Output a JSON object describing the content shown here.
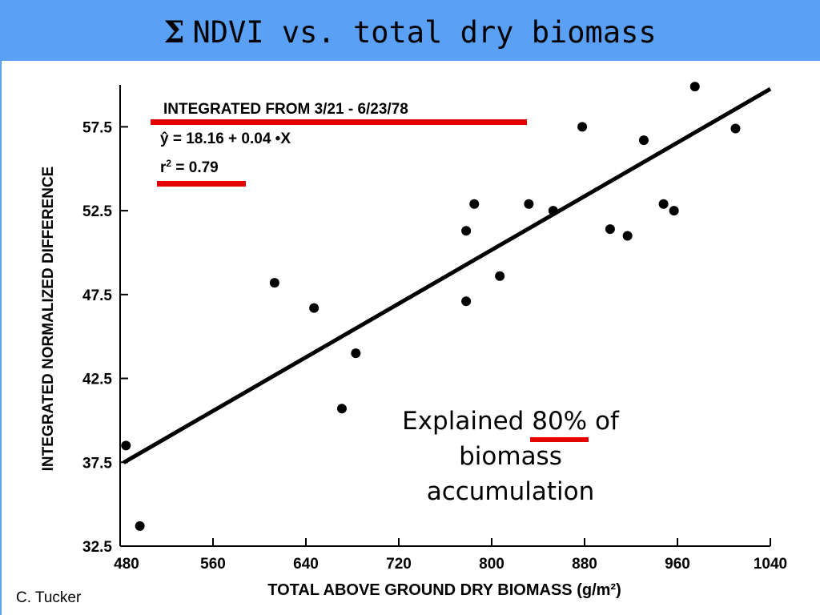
{
  "slide": {
    "title_symbol": "Σ",
    "title": "NDVI vs. total dry biomass",
    "credit": "C. Tucker",
    "callout_before": "Explained",
    "callout_percent": "80%",
    "callout_after": "of",
    "callout_line2": "biomass",
    "callout_line3": "accumulation",
    "title_bar_color": "#5aa0f5",
    "highlight_color": "#e50000"
  },
  "chart_data": {
    "type": "scatter",
    "xlabel": "TOTAL ABOVE GROUND DRY BIOMASS (g/m²)",
    "ylabel": "INTEGRATED NORMALIZED DIFFERENCE",
    "xlim": [
      480,
      1040
    ],
    "ylim": [
      32.5,
      60
    ],
    "xticks": [
      480,
      560,
      640,
      720,
      800,
      880,
      960,
      1040
    ],
    "xtick_labels": [
      "480",
      "560",
      "640",
      "720",
      "800",
      "880",
      "960",
      "1040"
    ],
    "yticks": [
      32.5,
      37.5,
      42.5,
      47.5,
      52.5,
      57.5
    ],
    "ytick_labels": [
      "32.5",
      "37.5",
      "42.5",
      "47.5",
      "52.5",
      "57.5"
    ],
    "annotations": {
      "integrated": "INTEGRATED FROM 3/21 - 6/23/78",
      "equation": "ŷ = 18.16 + 0.04 •X",
      "r2_prefix": "r",
      "r2_exp": "2",
      "r2_suffix": " = 0.79"
    },
    "regression": {
      "intercept": 18.16,
      "slope": 0.04,
      "r2": 0.79
    },
    "points": [
      {
        "x": 485,
        "y": 38.5
      },
      {
        "x": 497,
        "y": 33.7
      },
      {
        "x": 613,
        "y": 48.2
      },
      {
        "x": 647,
        "y": 46.7
      },
      {
        "x": 671,
        "y": 40.7
      },
      {
        "x": 683,
        "y": 44.0
      },
      {
        "x": 778,
        "y": 51.3
      },
      {
        "x": 778,
        "y": 47.1
      },
      {
        "x": 785,
        "y": 52.9
      },
      {
        "x": 807,
        "y": 48.6
      },
      {
        "x": 832,
        "y": 52.9
      },
      {
        "x": 853,
        "y": 52.5
      },
      {
        "x": 878,
        "y": 57.5
      },
      {
        "x": 902,
        "y": 51.4
      },
      {
        "x": 917,
        "y": 51.0
      },
      {
        "x": 931,
        "y": 56.7
      },
      {
        "x": 948,
        "y": 52.9
      },
      {
        "x": 957,
        "y": 52.5
      },
      {
        "x": 975,
        "y": 59.9
      },
      {
        "x": 1010,
        "y": 57.4
      }
    ]
  }
}
